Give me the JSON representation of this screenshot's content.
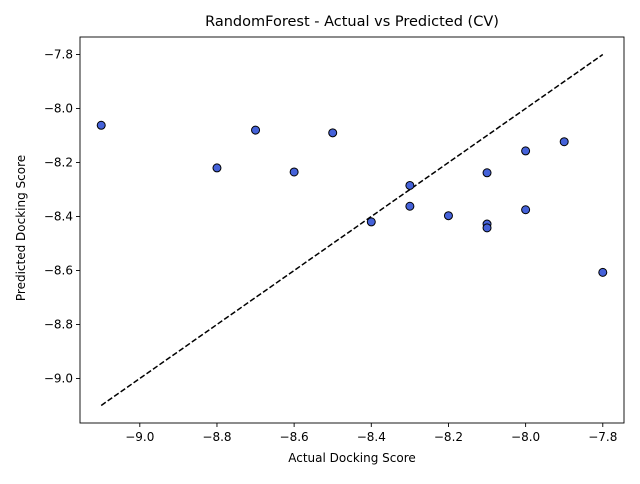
{
  "chart_data": {
    "type": "scatter",
    "title": "RandomForest - Actual vs Predicted (CV)",
    "xlabel": "Actual Docking Score",
    "ylabel": "Predicted Docking Score",
    "xlim": [
      -9.155,
      -7.745
    ],
    "ylim": [
      -9.165,
      -7.735
    ],
    "xticks": [
      -9.0,
      -8.8,
      -8.6,
      -8.4,
      -8.2,
      -8.0,
      -7.8
    ],
    "xtick_labels": [
      "−9.0",
      "−8.8",
      "−8.6",
      "−8.4",
      "−8.2",
      "−8.0",
      "−7.8"
    ],
    "yticks": [
      -9.0,
      -8.8,
      -8.6,
      -8.4,
      -8.2,
      -8.0,
      -7.8
    ],
    "ytick_labels": [
      "−9.0",
      "−8.8",
      "−8.6",
      "−8.4",
      "−8.2",
      "−8.0",
      "−7.8"
    ],
    "grid": false,
    "reference_line": {
      "from": [
        -9.1,
        -9.1
      ],
      "to": [
        -7.8,
        -7.8
      ],
      "style": "dashed",
      "color": "#000000"
    },
    "point_color": "#4562d9",
    "point_edge_color": "#000000",
    "points": [
      {
        "x": -9.1,
        "y": -8.062
      },
      {
        "x": -8.8,
        "y": -8.22
      },
      {
        "x": -8.7,
        "y": -8.08
      },
      {
        "x": -8.6,
        "y": -8.235
      },
      {
        "x": -8.5,
        "y": -8.09
      },
      {
        "x": -8.4,
        "y": -8.42
      },
      {
        "x": -8.3,
        "y": -8.285
      },
      {
        "x": -8.3,
        "y": -8.362
      },
      {
        "x": -8.2,
        "y": -8.397
      },
      {
        "x": -8.1,
        "y": -8.238
      },
      {
        "x": -8.1,
        "y": -8.428
      },
      {
        "x": -8.1,
        "y": -8.442
      },
      {
        "x": -8.0,
        "y": -8.157
      },
      {
        "x": -8.0,
        "y": -8.375
      },
      {
        "x": -7.9,
        "y": -8.123
      },
      {
        "x": -7.8,
        "y": -8.607
      }
    ]
  }
}
